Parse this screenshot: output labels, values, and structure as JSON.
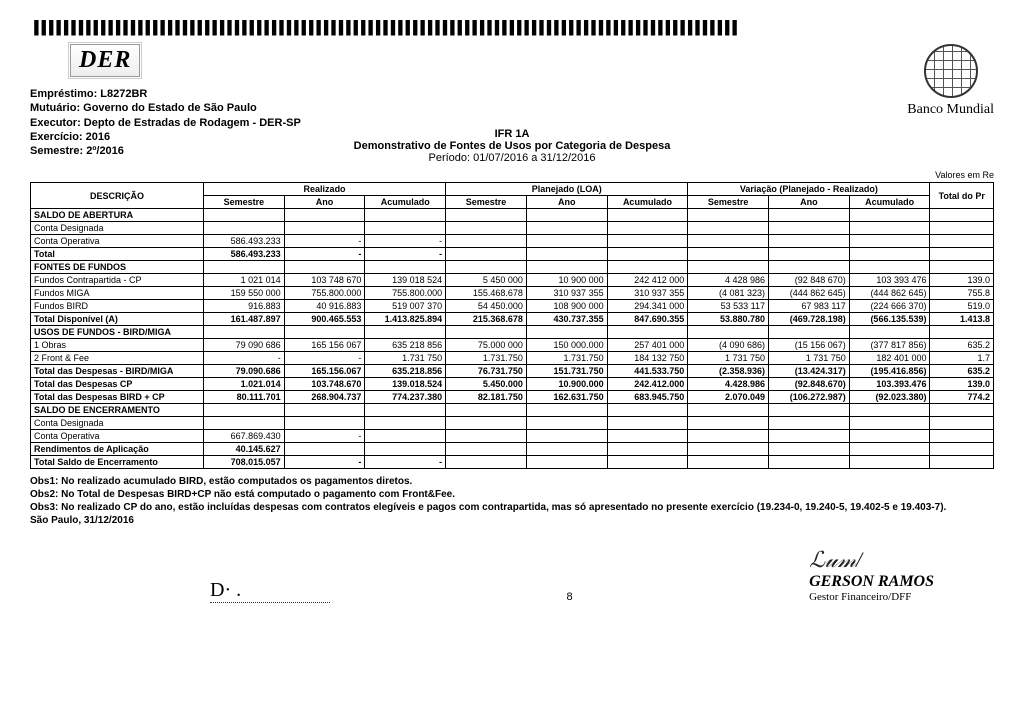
{
  "top_border_pattern": "▐▐▐▐▐▐▐▐▐▐▐▐▐▐▐▐▐▐▐▐▐▐▐▐▐▐▐▐▐▐▐▐▐▐▐▐▐▐▐▐▐▐▐▐▐▐▐▐▐▐▐▐▐▐▐▐▐▐▐▐▐▐▐▐▐▐▐▐▐▐▐▐▐▐▐▐▐▐▐▐▐▐▐▐▐▐▐▐▐▐▐▐▐▐▐",
  "logo_der_text": "DER",
  "bank_name": "Banco Mundial",
  "meta": {
    "l1": "Empréstimo: L8272BR",
    "l2": "Mutuário: Governo do Estado de São Paulo",
    "l3": "Executor: Depto de Estradas de Rodagem - DER-SP",
    "l4": "Exercício: 2016",
    "l5": "Semestre: 2º/2016"
  },
  "title": {
    "ifr": "IFR 1A",
    "sub": "Demonstrativo de Fontes de Usos por Categoria de Despesa",
    "period": "Período: 01/07/2016 a 31/12/2016"
  },
  "units_label": "Valores em Re",
  "headers": {
    "desc": "DESCRIÇÃO",
    "realizado": "Realizado",
    "planejado": "Planejado (LOA)",
    "variacao": "Variação (Planejado - Realizado)",
    "total": "Total do Pr",
    "sem": "Semestre",
    "ano": "Ano",
    "acum": "Acumulado"
  },
  "rows": [
    {
      "type": "section",
      "label": "SALDO DE ABERTURA"
    },
    {
      "type": "row",
      "label": "Conta Designada",
      "vals": [
        "",
        "",
        "",
        "",
        "",
        "",
        "",
        "",
        "",
        ""
      ]
    },
    {
      "type": "row",
      "label": "Conta Operativa",
      "vals": [
        "586.493.233",
        "-",
        "-",
        "",
        "",
        "",
        "",
        "",
        "",
        ""
      ]
    },
    {
      "type": "bold",
      "label": "Total",
      "vals": [
        "586.493.233",
        "-",
        "-",
        "",
        "",
        "",
        "",
        "",
        "",
        ""
      ]
    },
    {
      "type": "section",
      "label": "FONTES DE FUNDOS"
    },
    {
      "type": "row",
      "label": "Fundos Contrapartida - CP",
      "vals": [
        "1 021 014",
        "103 748 670",
        "139 018 524",
        "5 450 000",
        "10 900 000",
        "242 412 000",
        "4 428 986",
        "(92 848 670)",
        "103 393 476",
        "139.0"
      ]
    },
    {
      "type": "row",
      "label": "Fundos MIGA",
      "vals": [
        "159 550 000",
        "755.800.000",
        "755.800.000",
        "155.468.678",
        "310 937 355",
        "310 937 355",
        "(4 081 323)",
        "(444 862 645)",
        "(444 862 645)",
        "755.8"
      ]
    },
    {
      "type": "row",
      "label": "Fundos BIRD",
      "vals": [
        "916.883",
        "40 916.883",
        "519 007 370",
        "54 450.000",
        "108 900 000",
        "294.341 000",
        "53 533 117",
        "67 983 117",
        "(224 666 370)",
        "519.0"
      ]
    },
    {
      "type": "bold",
      "label": "Total Disponível (A)",
      "vals": [
        "161.487.897",
        "900.465.553",
        "1.413.825.894",
        "215.368.678",
        "430.737.355",
        "847.690.355",
        "53.880.780",
        "(469.728.198)",
        "(566.135.539)",
        "1.413.8"
      ]
    },
    {
      "type": "section",
      "label": "USOS DE FUNDOS - BIRD/MIGA"
    },
    {
      "type": "row",
      "label": "1  Obras",
      "vals": [
        "79 090 686",
        "165 156 067",
        "635 218 856",
        "75.000 000",
        "150 000.000",
        "257 401 000",
        "(4 090 686)",
        "(15 156 067)",
        "(377 817 856)",
        "635.2"
      ]
    },
    {
      "type": "row",
      "label": "2  Front & Fee",
      "vals": [
        "-",
        "-",
        "1.731 750",
        "1.731.750",
        "1.731.750",
        "184 132 750",
        "1 731 750",
        "1 731 750",
        "182 401 000",
        "1.7"
      ]
    },
    {
      "type": "bold",
      "label": "Total das Despesas - BIRD/MIGA",
      "vals": [
        "79.090.686",
        "165.156.067",
        "635.218.856",
        "76.731.750",
        "151.731.750",
        "441.533.750",
        "(2.358.936)",
        "(13.424.317)",
        "(195.416.856)",
        "635.2"
      ]
    },
    {
      "type": "bold",
      "label": "Total das Despesas CP",
      "vals": [
        "1.021.014",
        "103.748.670",
        "139.018.524",
        "5.450.000",
        "10.900.000",
        "242.412.000",
        "4.428.986",
        "(92.848.670)",
        "103.393.476",
        "139.0"
      ]
    },
    {
      "type": "bold",
      "label": "Total das Despesas BIRD + CP",
      "vals": [
        "80.111.701",
        "268.904.737",
        "774.237.380",
        "82.181.750",
        "162.631.750",
        "683.945.750",
        "2.070.049",
        "(106.272.987)",
        "(92.023.380)",
        "774.2"
      ]
    },
    {
      "type": "section",
      "label": "SALDO DE ENCERRAMENTO"
    },
    {
      "type": "row",
      "label": "Conta Designada",
      "vals": [
        "",
        "",
        "",
        "",
        "",
        "",
        "",
        "",
        "",
        ""
      ]
    },
    {
      "type": "row",
      "label": "Conta Operativa",
      "vals": [
        "667.869.430",
        "-",
        "",
        "",
        "",
        "",
        "",
        "",
        "",
        ""
      ]
    },
    {
      "type": "bold",
      "label": "Rendimentos de Aplicação",
      "vals": [
        "40.145.627",
        "",
        "",
        "",
        "",
        "",
        "",
        "",
        "",
        ""
      ]
    },
    {
      "type": "bold",
      "label": "Total Saldo de Encerramento",
      "vals": [
        "708.015.057",
        "-",
        "-",
        "",
        "",
        "",
        "",
        "",
        "",
        ""
      ]
    }
  ],
  "notes": {
    "n1": "Obs1: No realizado acumulado BIRD, estão computados os pagamentos diretos.",
    "n2": "Obs2: No Total de Despesas BIRD+CP não está computado o pagamento com Front&Fee.",
    "n3": "Obs3: No realizado CP do ano, estão incluídas despesas com contratos elegíveis e pagos com contrapartida, mas só apresentado no presente exercício (19.234-0, 19.240-5, 19.402-5 e 19.403-7).",
    "place_date": "São Paulo, 31/12/2016"
  },
  "page_number": "8",
  "signature": {
    "left_mark": "D· .",
    "right_scribble": "___",
    "name": "GERSON RAMOS",
    "role": "Gestor Financeiro/DFF"
  }
}
